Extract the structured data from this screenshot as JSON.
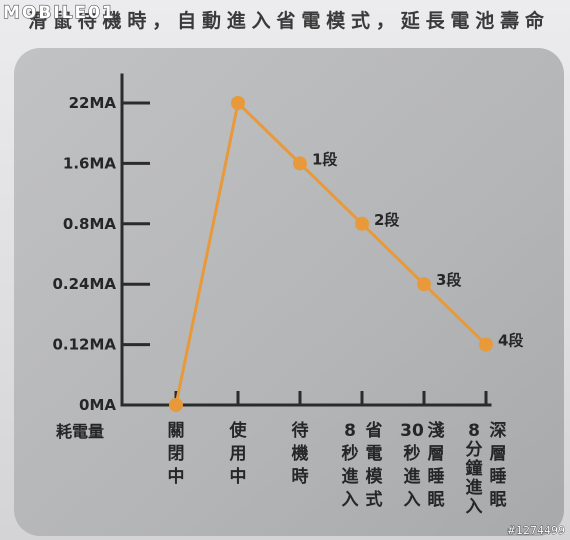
{
  "caption": "滑鼠待機時，自動進入省電模式，延長電池壽命",
  "watermark": {
    "logo": "MOBILE01",
    "id": "#1274499"
  },
  "colors": {
    "line": "#e8993a",
    "axis": "#2b2b2b",
    "panel": "#b5b6b8"
  },
  "chart_data": {
    "type": "line",
    "title": "",
    "xlabel": "",
    "ylabel": "耗電量",
    "y_unit": "MA",
    "y_scale": "categorical",
    "y_ticks": [
      0,
      0.12,
      0.24,
      0.8,
      1.6,
      22
    ],
    "y_tick_labels": [
      "0MA",
      "0.12MA",
      "0.24MA",
      "0.8MA",
      "1.6MA",
      "22MA"
    ],
    "categories": [
      "關閉中",
      "使用中",
      "待機時",
      "8秒進入省電模式",
      "30秒進入淺層睡眠",
      "8分鐘進入深層睡眠"
    ],
    "values": [
      0,
      22,
      1.6,
      0.8,
      0.24,
      0.12
    ],
    "data_labels": [
      "",
      "",
      "1段",
      "2段",
      "3段",
      "4段"
    ],
    "grid": false,
    "legend": "none"
  }
}
